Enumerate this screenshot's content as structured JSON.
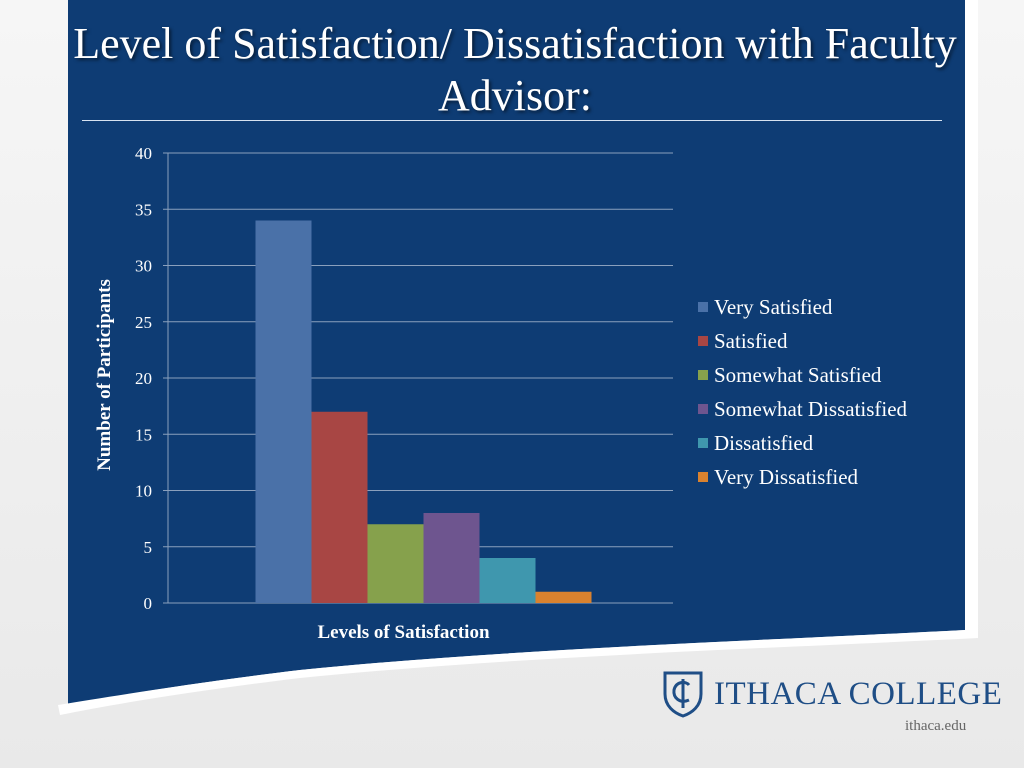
{
  "slide": {
    "title": "Level of Satisfaction/ Dissatisfaction with Faculty Advisor:",
    "logo_name": "ITHACA COLLEGE",
    "logo_url": "ithaca.edu"
  },
  "colors": {
    "panel": "#0e3c74",
    "brand": "#1f4e86"
  },
  "chart_data": {
    "type": "bar",
    "xlabel": "Levels of Satisfaction",
    "ylabel": "Number of Participants",
    "ylim": [
      0,
      40
    ],
    "yticks": [
      0,
      5,
      10,
      15,
      20,
      25,
      30,
      35,
      40
    ],
    "grid": true,
    "legend_position": "right",
    "series": [
      {
        "name": "Very Satisfied",
        "value": 34,
        "color": "#4a71a8"
      },
      {
        "name": "Satisfied",
        "value": 17,
        "color": "#a84644"
      },
      {
        "name": "Somewhat Satisfied",
        "value": 7,
        "color": "#86a14c"
      },
      {
        "name": "Somewhat Dissatisfied",
        "value": 8,
        "color": "#6e558f"
      },
      {
        "name": "Dissatisfied",
        "value": 4,
        "color": "#3f97ae"
      },
      {
        "name": "Very Dissatisfied",
        "value": 1,
        "color": "#d9822f"
      }
    ]
  }
}
